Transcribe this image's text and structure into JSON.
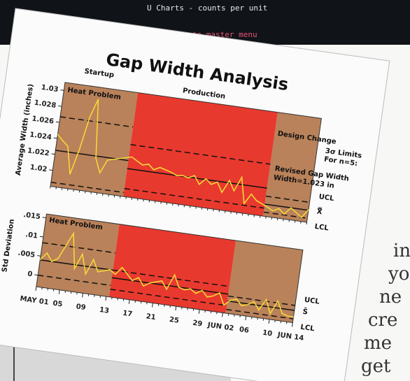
{
  "screen_text": [
    "U Charts  - counts per unit",
    "rn to master menu"
  ],
  "body_text": [
    "in",
    "yo",
    "ne",
    "cre",
    "me",
    "get"
  ],
  "chart_data": [
    {
      "type": "line",
      "title": "Gap Width Analysis",
      "y_label": "Average Width (inches)",
      "phase_labels": [
        "Startup",
        "Production",
        "Design Change"
      ],
      "annotations": [
        "Heat Problem",
        "Revised Gap Width",
        "Width=1.023 in",
        "3σ Limits",
        "For n=5:"
      ],
      "limit_labels": [
        "UCL",
        "X̿",
        "LCL"
      ],
      "ylim": [
        1.018,
        1.031
      ],
      "yticks": [
        1.02,
        1.022,
        1.024,
        1.026,
        1.028,
        1.03
      ],
      "regions": [
        {
          "from": 0,
          "to": 12.5,
          "color": "#b9825a"
        },
        {
          "from": 12.5,
          "to": 36.5,
          "color": "#e8392e"
        },
        {
          "from": 36.5,
          "to": 44,
          "color": "#b9825a"
        }
      ],
      "limits": [
        {
          "from": 0,
          "to": 12.5,
          "ucl": 1.0267,
          "center": 1.0225,
          "lcl": 1.0185
        },
        {
          "from": 12.5,
          "to": 36.5,
          "ucl": 1.0245,
          "center": 1.0215,
          "lcl": 1.019
        },
        {
          "from": 36.5,
          "to": 44,
          "ucl": 1.0205,
          "center": 1.0195,
          "lcl": 1.0185
        }
      ],
      "series": [
        {
          "color": "#f5d63a",
          "values": [
            1.0245,
            1.0238,
            1.0232,
            1.0198,
            1.023,
            1.0272,
            1.0295,
            1.0222,
            1.0205,
            1.0222,
            1.0224,
            1.0226,
            1.0228,
            1.023,
            1.0226,
            1.0222,
            1.0224,
            1.0218,
            1.0222,
            1.022,
            1.0218,
            1.0215,
            1.0216,
            1.0214,
            1.0218,
            1.0208,
            1.0216,
            1.021,
            1.0214,
            1.0202,
            1.0218,
            1.0206,
            1.0224,
            1.0192,
            1.0205,
            1.0198,
            1.0195,
            1.0192,
            1.0188,
            1.0192,
            1.0186,
            1.0195,
            1.019,
            1.0185,
            1.0196
          ]
        }
      ]
    },
    {
      "type": "line",
      "y_label": "Std Deviation",
      "annotations": [
        "Heat Problem"
      ],
      "limit_labels": [
        "UCL",
        "S̄",
        "LCL"
      ],
      "categories": [
        "MAY 01",
        null,
        null,
        null,
        "05",
        null,
        null,
        null,
        "09",
        null,
        null,
        null,
        "13",
        null,
        null,
        null,
        "17",
        null,
        null,
        null,
        "21",
        null,
        null,
        null,
        "25",
        null,
        null,
        null,
        "29",
        null,
        null,
        null,
        "JUN 02",
        null,
        null,
        null,
        "06",
        null,
        null,
        null,
        "10",
        null,
        null,
        null,
        "JUN 14"
      ],
      "ylim": [
        -0.003,
        0.016
      ],
      "yticks": [
        0,
        {
          "value": 0.005,
          "label": ".005"
        },
        {
          "value": 0.01,
          "label": ".01"
        },
        {
          "value": 0.015,
          "label": ".015"
        }
      ],
      "regions": [
        {
          "from": 0,
          "to": 12.5,
          "color": "#b9825a"
        },
        {
          "from": 12.5,
          "to": 32.5,
          "color": "#e8392e"
        },
        {
          "from": 32.5,
          "to": 44,
          "color": "#b9825a"
        }
      ],
      "limits": [
        {
          "from": 0,
          "to": 12.5,
          "ucl": 0.0085,
          "center": 0.004,
          "lcl": 0
        },
        {
          "from": 12.5,
          "to": 32.5,
          "ucl": 0.004,
          "center": 0.002,
          "lcl": -0.001
        },
        {
          "from": 32.5,
          "to": 44,
          "ucl": 0.0015,
          "center": 0.0002,
          "lcl": -0.002
        }
      ],
      "series": [
        {
          "color": "#f5d63a",
          "values": [
            0.004,
            0.006,
            0.004,
            0.005,
            0.0085,
            0.012,
            0.003,
            0.007,
            0.002,
            0.006,
            0.003,
            0.0035,
            0.004,
            0.003,
            0.005,
            0.0035,
            0.002,
            0.003,
            0.001,
            0.002,
            0.0025,
            0.003,
            0.001,
            0.005,
            0.002,
            0.0015,
            0.002,
            0.001,
            0.002,
            0.0005,
            0.001,
            0.002,
            -0.001,
            0.0005,
            0.001,
            -0.0005,
            0,
            0.001,
            -0.001,
            0.002,
            -0.0015,
            0.002,
            -0.001,
            -0.0015,
            -0.0015
          ]
        }
      ]
    }
  ]
}
